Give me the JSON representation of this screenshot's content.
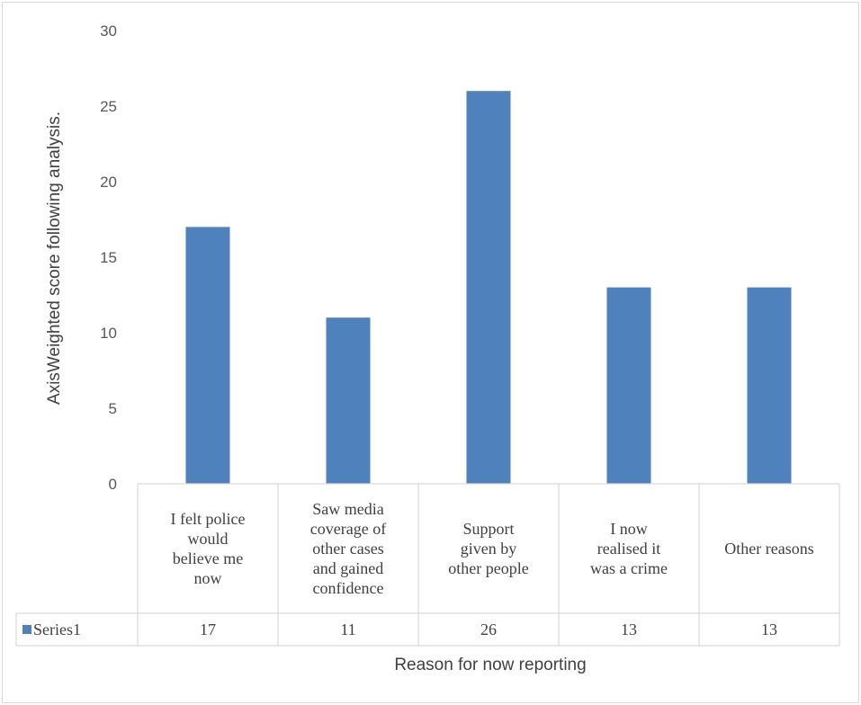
{
  "chart_data": {
    "type": "bar",
    "categories": [
      [
        "I felt police",
        "would",
        "believe me",
        "now"
      ],
      [
        "Saw media",
        "coverage of",
        "other cases",
        "and gained",
        "confidence"
      ],
      [
        "Support",
        "given by",
        "other people"
      ],
      [
        "I now",
        "realised it",
        "was  a crime"
      ],
      [
        "Other reasons"
      ]
    ],
    "series": [
      {
        "name": "Series1",
        "values": [
          17,
          11,
          26,
          13,
          13
        ],
        "color": "#4f81bd"
      }
    ],
    "ylabel": "AxisWeighted score following analysis.",
    "xlabel": "Reason for now reporting",
    "ylim": [
      0,
      30
    ],
    "yticks": [
      0,
      5,
      10,
      15,
      20,
      25,
      30
    ],
    "grid": false,
    "legend": "data-table"
  }
}
